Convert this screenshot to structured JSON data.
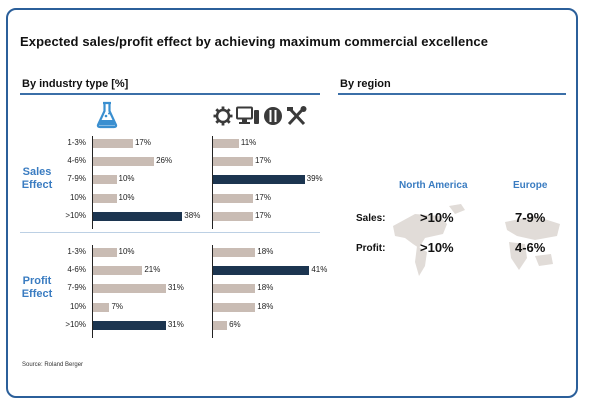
{
  "title": "Expected sales/profit effect by achieving maximum commercial excellence",
  "left_heading": "By industry type [%]",
  "right_heading": "By region",
  "source": "Source: Roland Berger",
  "colors": {
    "bar_light": "#c9bcb4",
    "bar_dark": "#1c3550",
    "accent": "#3a7cc1",
    "rule": "#3b6fa8"
  },
  "icons": {
    "left_column": "lab-flask-icon",
    "right_column": [
      "gear-icon",
      "computer-icon",
      "tire-icon",
      "tools-icon"
    ]
  },
  "chart_data": [
    {
      "type": "bar",
      "orientation": "horizontal",
      "group": "Sales Effect",
      "column_icon": "lab-flask-icon",
      "categories": [
        "1-3%",
        "4-6%",
        "7-9%",
        "10%",
        ">10%"
      ],
      "values": [
        17,
        26,
        10,
        10,
        38
      ],
      "labels": [
        "17%",
        "26%",
        "10%",
        "10%",
        "38%"
      ],
      "highlight_index": 4
    },
    {
      "type": "bar",
      "orientation": "horizontal",
      "group": "Sales Effect",
      "column_icon": "industrial-icons",
      "categories": [
        "1-3%",
        "4-6%",
        "7-9%",
        "10%",
        ">10%"
      ],
      "values": [
        11,
        17,
        39,
        17,
        17
      ],
      "labels": [
        "11%",
        "17%",
        "39%",
        "17%",
        "17%"
      ],
      "highlight_index": 2
    },
    {
      "type": "bar",
      "orientation": "horizontal",
      "group": "Profit Effect",
      "column_icon": "lab-flask-icon",
      "categories": [
        "1-3%",
        "4-6%",
        "7-9%",
        "10%",
        ">10%"
      ],
      "values": [
        10,
        21,
        31,
        7,
        31
      ],
      "labels": [
        "10%",
        "21%",
        "31%",
        "7%",
        "31%"
      ],
      "highlight_index": 4
    },
    {
      "type": "bar",
      "orientation": "horizontal",
      "group": "Profit Effect",
      "column_icon": "industrial-icons",
      "categories": [
        "1-3%",
        "4-6%",
        "7-9%",
        "10%",
        ">10%"
      ],
      "values": [
        18,
        41,
        18,
        18,
        6
      ],
      "labels": [
        "18%",
        "41%",
        "18%",
        "18%",
        "6%"
      ],
      "highlight_index": 1
    },
    {
      "type": "table",
      "title": "By region",
      "columns": [
        "North America",
        "Europe"
      ],
      "rows": [
        {
          "label": "Sales:",
          "values": [
            ">10%",
            "7-9%"
          ]
        },
        {
          "label": "Profit:",
          "values": [
            ">10%",
            "4-6%"
          ]
        }
      ]
    }
  ],
  "group_labels": {
    "sales": [
      "Sales",
      "Effect"
    ],
    "profit": [
      "Profit",
      "Effect"
    ]
  }
}
